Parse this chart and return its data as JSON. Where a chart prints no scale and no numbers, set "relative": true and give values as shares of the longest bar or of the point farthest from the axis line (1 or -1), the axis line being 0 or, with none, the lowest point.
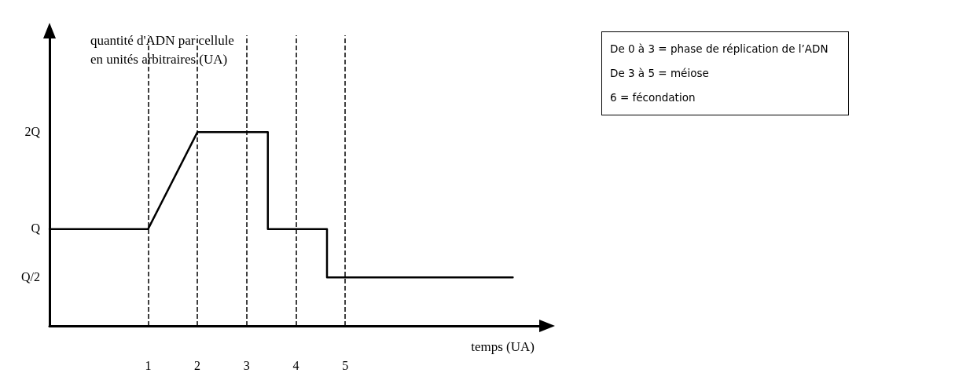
{
  "chart_data": {
    "type": "line",
    "xlabel": "temps (UA)",
    "ylabel": "quantité d'ADN par cellule\nen unités arbitraires (UA)",
    "relative": true,
    "x": [
      -1,
      1,
      2,
      3.43,
      3.43,
      4.63,
      4.63,
      8.4
    ],
    "series": [
      {
        "color": "#000000",
        "values": [
          0.5,
          0.5,
          1,
          1,
          0.5,
          0.5,
          0.25,
          0.25
        ]
      }
    ],
    "xlim": [
      -1,
      9
    ],
    "xticks": [
      1,
      2,
      3,
      4,
      5
    ],
    "ref_lines": [
      {
        "axis": "x",
        "value": 1,
        "color": "#000000",
        "line_style": "dashed"
      },
      {
        "axis": "x",
        "value": 2,
        "color": "#000000",
        "line_style": "dashed"
      },
      {
        "axis": "x",
        "value": 3,
        "color": "#000000",
        "line_style": "dashed"
      },
      {
        "axis": "x",
        "value": 4,
        "color": "#000000",
        "line_style": "dashed"
      },
      {
        "axis": "x",
        "value": 5,
        "color": "#000000",
        "line_style": "dashed"
      }
    ],
    "annotations": [
      "Q/2",
      "Q",
      "2Q",
      "De 0 à 3 = phase de réplication de l’ADN",
      "De 3 à 5 = méiose",
      "6 = fécondation"
    ],
    "grid": false,
    "marker": "none",
    "line_style": "solid"
  }
}
